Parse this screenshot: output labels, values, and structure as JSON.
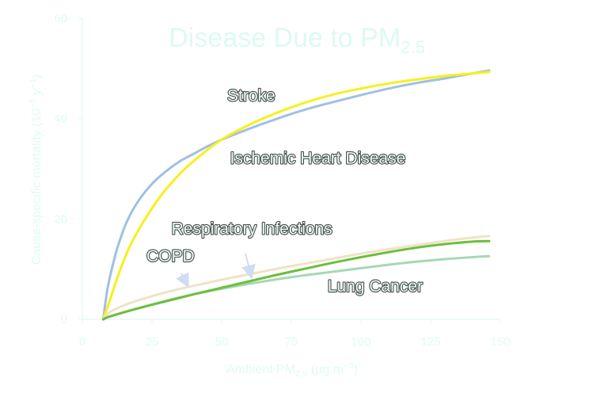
{
  "colors": {
    "axis_text": "#e0fbf4",
    "axis_line": "#e0fbf4",
    "label_text": "#e6fcf6",
    "title_text": "#dcfaf3",
    "arrow": "#cfdcf2"
  },
  "chart_data": {
    "type": "line",
    "title": "Disease Due to PM",
    "title_subscript": "2.5",
    "xlabel": "Ambient PM",
    "xlabel_subscript": "2.5",
    "xlabel_units": " (μg m",
    "xlabel_units_sup": "−3",
    "xlabel_units_end": ")",
    "ylabel": "Cause-specific mortality (10",
    "ylabel_sup1": "−5",
    "ylabel_mid": " y",
    "ylabel_sup2": "−1",
    "ylabel_end": ")",
    "xlim": [
      0,
      150
    ],
    "ylim": [
      0,
      60
    ],
    "xticks": [
      "0",
      "25",
      "50",
      "75",
      "100",
      "125",
      "150"
    ],
    "yticks": [
      "0",
      "20",
      "40",
      "60"
    ],
    "grid": false,
    "series": [
      {
        "name": "Ischemic Heart Disease",
        "color": "#9fc0e2",
        "width": 3,
        "points": [
          [
            7.5,
            0
          ],
          [
            9,
            6
          ],
          [
            11,
            11
          ],
          [
            13,
            15
          ],
          [
            16,
            19.5
          ],
          [
            20,
            23.5
          ],
          [
            25,
            27
          ],
          [
            30,
            29.5
          ],
          [
            35,
            31.5
          ],
          [
            40,
            33
          ],
          [
            45,
            34.5
          ],
          [
            50,
            35.8
          ],
          [
            60,
            38
          ],
          [
            70,
            40
          ],
          [
            80,
            41.8
          ],
          [
            90,
            43.3
          ],
          [
            100,
            44.7
          ],
          [
            110,
            46
          ],
          [
            120,
            47.1
          ],
          [
            130,
            48
          ],
          [
            140,
            49
          ],
          [
            146,
            49.6
          ]
        ]
      },
      {
        "name": "Stroke",
        "color": "#f7f01d",
        "width": 3,
        "points": [
          [
            7.5,
            0
          ],
          [
            10,
            4
          ],
          [
            13,
            9
          ],
          [
            17,
            14.5
          ],
          [
            22,
            19.5
          ],
          [
            28,
            24.5
          ],
          [
            35,
            29
          ],
          [
            42,
            32.5
          ],
          [
            50,
            35.8
          ],
          [
            60,
            38.8
          ],
          [
            70,
            41.2
          ],
          [
            80,
            43.2
          ],
          [
            90,
            44.8
          ],
          [
            100,
            46
          ],
          [
            110,
            47
          ],
          [
            120,
            47.8
          ],
          [
            130,
            48.5
          ],
          [
            140,
            49
          ],
          [
            146,
            49.3
          ]
        ]
      },
      {
        "name": "Respiratory Infections",
        "color": "#f1e2c6",
        "width": 3,
        "points": [
          [
            7.5,
            0
          ],
          [
            10,
            1.5
          ],
          [
            15,
            2.8
          ],
          [
            20,
            3.8
          ],
          [
            30,
            5.4
          ],
          [
            40,
            6.7
          ],
          [
            50,
            7.9
          ],
          [
            60,
            9
          ],
          [
            70,
            10.1
          ],
          [
            80,
            11.1
          ],
          [
            90,
            12.1
          ],
          [
            100,
            13.1
          ],
          [
            110,
            14
          ],
          [
            120,
            14.8
          ],
          [
            130,
            15.6
          ],
          [
            140,
            16.3
          ],
          [
            146,
            16.6
          ]
        ]
      },
      {
        "name": "Lung Cancer",
        "color": "#a6d8b3",
        "width": 3,
        "points": [
          [
            7.5,
            0
          ],
          [
            10,
            0.6
          ],
          [
            20,
            2.2
          ],
          [
            30,
            3.7
          ],
          [
            40,
            5
          ],
          [
            50,
            6.1
          ],
          [
            60,
            7.1
          ],
          [
            70,
            8
          ],
          [
            80,
            8.8
          ],
          [
            90,
            9.5
          ],
          [
            100,
            10.2
          ],
          [
            110,
            10.9
          ],
          [
            120,
            11.5
          ],
          [
            130,
            12
          ],
          [
            140,
            12.4
          ],
          [
            146,
            12.6
          ]
        ]
      },
      {
        "name": "COPD",
        "color": "#6cbe3c",
        "width": 3,
        "points": [
          [
            7.5,
            0
          ],
          [
            10,
            0.6
          ],
          [
            20,
            2.2
          ],
          [
            30,
            3.6
          ],
          [
            40,
            5
          ],
          [
            50,
            6.3
          ],
          [
            60,
            7.6
          ],
          [
            70,
            8.9
          ],
          [
            80,
            10.1
          ],
          [
            90,
            11.3
          ],
          [
            100,
            12.4
          ],
          [
            110,
            13.4
          ],
          [
            120,
            14.3
          ],
          [
            130,
            15
          ],
          [
            140,
            15.5
          ],
          [
            146,
            15.6
          ]
        ]
      }
    ],
    "annotations": [
      {
        "text": "Stroke",
        "x": 52,
        "y": 43.5
      },
      {
        "text": "Ischemic Heart Disease",
        "x": 53,
        "y": 31
      },
      {
        "text": "Respiratory Infections",
        "x": 32,
        "y": 17
      },
      {
        "text": "COPD",
        "x": 23,
        "y": 11.5
      },
      {
        "text": "Lung Cancer",
        "x": 88,
        "y": 5.5
      }
    ],
    "arrows": [
      {
        "from": [
          35.5,
          9.2
        ],
        "to": [
          37.5,
          7
        ]
      },
      {
        "from": [
          58.5,
          13.2
        ],
        "to": [
          60.5,
          8.8
        ]
      }
    ]
  }
}
